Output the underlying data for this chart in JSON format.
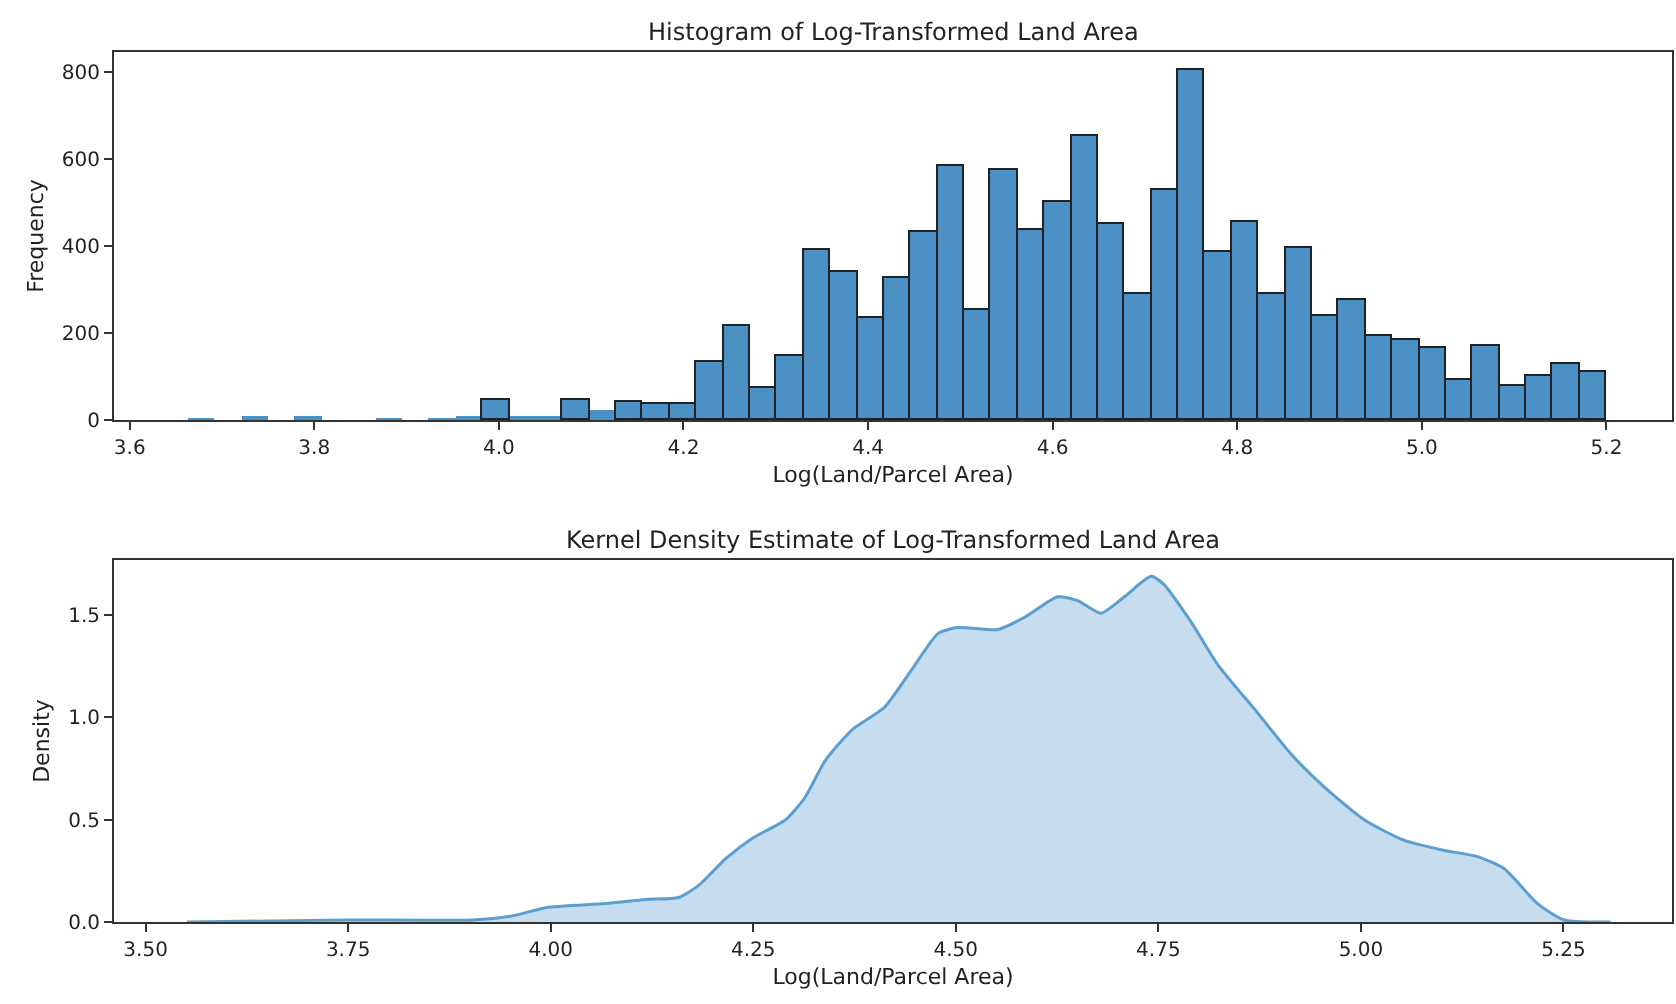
{
  "chart_data": [
    {
      "type": "histogram",
      "title": "Histogram of Log-Transformed Land Area",
      "xlabel": "Log(Land/Parcel Area)",
      "ylabel": "Frequency",
      "bins": [
        3.663,
        3.692,
        3.721,
        3.75,
        3.779,
        3.808,
        3.837,
        3.866,
        3.895,
        3.924,
        3.953,
        3.982,
        4.011,
        4.04,
        4.069,
        4.098,
        4.127,
        4.156,
        4.185,
        4.214,
        4.243,
        4.272,
        4.301,
        4.33,
        4.359,
        4.388,
        4.417,
        4.446,
        4.475,
        4.504,
        4.533,
        4.562,
        4.591,
        4.62,
        4.649,
        4.678,
        4.707,
        4.736,
        4.765,
        4.794,
        4.823,
        4.852,
        4.881,
        4.91,
        4.939,
        4.968,
        4.997,
        5.026,
        5.055,
        5.084,
        5.113,
        5.142,
        5.171,
        5.2
      ],
      "values": [
        3,
        0,
        5,
        0,
        10,
        0,
        0,
        3,
        0,
        3,
        8,
        46,
        10,
        10,
        46,
        23,
        43,
        35,
        35,
        131,
        215,
        72,
        148,
        389,
        341,
        234,
        326,
        434,
        584,
        254,
        574,
        438,
        501,
        651,
        448,
        288,
        528,
        803,
        385,
        454,
        289,
        395,
        241,
        274,
        192,
        185,
        165,
        92,
        169,
        77,
        100,
        128,
        112
      ],
      "color": "#4a90c4",
      "xlim": [
        3.583,
        5.271
      ],
      "ylim": [
        0,
        845
      ],
      "xticks": [
        3.6,
        3.8,
        {
          "value": 4.0,
          "label": "4.0"
        },
        4.2,
        4.4,
        4.6,
        4.8,
        {
          "value": 5.0,
          "label": "5.0"
        },
        5.2
      ],
      "yticks": [
        0,
        200,
        400,
        600,
        800
      ]
    },
    {
      "type": "area",
      "title": "Kernel Density Estimate of Log-Transformed Land Area",
      "xlabel": "Log(Land/Parcel Area)",
      "ylabel": "Density",
      "x": [
        3.551,
        3.748,
        3.904,
        3.953,
        3.994,
        4.068,
        4.117,
        4.158,
        4.183,
        4.216,
        4.249,
        4.29,
        4.314,
        4.339,
        4.372,
        4.412,
        4.445,
        4.478,
        4.502,
        4.552,
        4.585,
        4.626,
        4.651,
        4.679,
        4.708,
        4.741,
        4.757,
        4.79,
        4.823,
        4.873,
        4.914,
        4.955,
        5.004,
        5.053,
        5.103,
        5.144,
        5.177,
        5.218,
        5.251,
        5.308
      ],
      "values": [
        0,
        0.01,
        0.01,
        0.03,
        0.07,
        0.09,
        0.11,
        0.12,
        0.18,
        0.31,
        0.41,
        0.5,
        0.61,
        0.79,
        0.94,
        1.05,
        1.23,
        1.41,
        1.44,
        1.43,
        1.49,
        1.59,
        1.57,
        1.51,
        1.59,
        1.69,
        1.65,
        1.47,
        1.26,
        1.02,
        0.82,
        0.66,
        0.5,
        0.4,
        0.35,
        0.32,
        0.26,
        0.09,
        0.01,
        0
      ],
      "color": "#5b9fd0",
      "xlim": [
        3.461,
        5.384
      ],
      "ylim": [
        0,
        1.77
      ],
      "xticks": [
        {
          "value": 3.5,
          "label": "3.50"
        },
        {
          "value": 3.75,
          "label": "3.75"
        },
        {
          "value": 4.0,
          "label": "4.00"
        },
        {
          "value": 4.25,
          "label": "4.25"
        },
        {
          "value": 4.5,
          "label": "4.50"
        },
        {
          "value": 4.75,
          "label": "4.75"
        },
        {
          "value": 5.0,
          "label": "5.00"
        },
        {
          "value": 5.25,
          "label": "5.25"
        }
      ],
      "yticks": [
        {
          "value": 0,
          "label": "0.0"
        },
        {
          "value": 0.5,
          "label": "0.5"
        },
        {
          "value": 1.0,
          "label": "1.0"
        },
        {
          "value": 1.5,
          "label": "1.5"
        }
      ]
    }
  ]
}
